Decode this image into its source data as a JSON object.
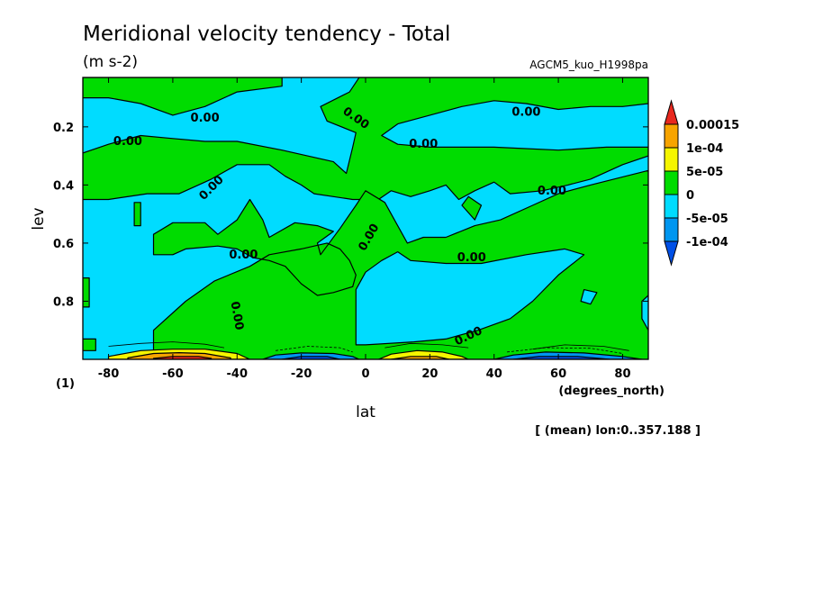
{
  "chart_data": {
    "type": "heatmap",
    "title": "Meridional velocity tendency - Total",
    "units": "(m s-2)",
    "experiment": "AGCM5_kuo_H1998pa",
    "xlabel": "lat",
    "xunits": "(degrees_north)",
    "ylabel": "lev",
    "ylabel_unit": "(1)",
    "averaging_note": "[ (mean) lon:0..357.188 ]",
    "xlim": [
      -88,
      88
    ],
    "ylim": [
      1.0,
      0.03
    ],
    "x_ticks": [
      {
        "value": -80,
        "label": "-80"
      },
      {
        "value": -60,
        "label": "-60"
      },
      {
        "value": -40,
        "label": "-40"
      },
      {
        "value": -20,
        "label": "-20"
      },
      {
        "value": 0,
        "label": "0"
      },
      {
        "value": 20,
        "label": "20"
      },
      {
        "value": 40,
        "label": "40"
      },
      {
        "value": 60,
        "label": "60"
      },
      {
        "value": 80,
        "label": "80"
      }
    ],
    "y_ticks": [
      {
        "value": 0.2,
        "label": "0.2"
      },
      {
        "value": 0.4,
        "label": "0.4"
      },
      {
        "value": 0.6,
        "label": "0.6"
      },
      {
        "value": 0.8,
        "label": "0.8"
      }
    ],
    "colorbar": {
      "levels": [
        "0.00015",
        "1e-04",
        "5e-05",
        "0",
        "-5e-05",
        "-1e-04"
      ],
      "colors": [
        "#e8281e",
        "#f7a400",
        "#f5f500",
        "#00dc00",
        "#00dcff",
        "#0096f0",
        "#0050e6"
      ]
    },
    "contour_labels": [
      {
        "text": "0.00",
        "lat": -50,
        "lev": 0.17,
        "angle": 0
      },
      {
        "text": "0.00",
        "lat": -74,
        "lev": 0.25,
        "angle": 0
      },
      {
        "text": "0.00",
        "lat": -48,
        "lev": 0.41,
        "angle": -45
      },
      {
        "text": "0.00",
        "lat": -38,
        "lev": 0.64,
        "angle": 0
      },
      {
        "text": "0.00",
        "lat": -40,
        "lev": 0.85,
        "angle": 80
      },
      {
        "text": "0.00",
        "lat": -3,
        "lev": 0.17,
        "angle": 35
      },
      {
        "text": "0.00",
        "lat": 18,
        "lev": 0.26,
        "angle": 0
      },
      {
        "text": "0.00",
        "lat": 50,
        "lev": 0.15,
        "angle": 0
      },
      {
        "text": "0.00",
        "lat": 58,
        "lev": 0.42,
        "angle": 0
      },
      {
        "text": "0.00",
        "lat": 1,
        "lev": 0.58,
        "angle": -60
      },
      {
        "text": "0.00",
        "lat": 33,
        "lev": 0.65,
        "angle": 0
      },
      {
        "text": "0.00",
        "lat": 32,
        "lev": 0.92,
        "angle": -25
      }
    ],
    "regions": [
      {
        "color": "#00dc00",
        "points": [
          [
            -88,
            0.03
          ],
          [
            -26,
            0.03
          ],
          [
            -26,
            0.06
          ],
          [
            -40,
            0.08
          ],
          [
            -50,
            0.13
          ],
          [
            -60,
            0.16
          ],
          [
            -70,
            0.12
          ],
          [
            -80,
            0.1
          ],
          [
            -88,
            0.1
          ]
        ]
      },
      {
        "color": "#00dc00",
        "points": [
          [
            -88,
            0.29
          ],
          [
            -80,
            0.26
          ],
          [
            -70,
            0.23
          ],
          [
            -60,
            0.24
          ],
          [
            -50,
            0.25
          ],
          [
            -40,
            0.25
          ],
          [
            -26,
            0.28
          ],
          [
            -10,
            0.32
          ],
          [
            -6,
            0.36
          ],
          [
            -4,
            0.27
          ],
          [
            -3,
            0.22
          ],
          [
            -12,
            0.18
          ],
          [
            -14,
            0.13
          ],
          [
            -5,
            0.08
          ],
          [
            -2,
            0.03
          ],
          [
            88,
            0.03
          ],
          [
            88,
            0.12
          ],
          [
            80,
            0.13
          ],
          [
            70,
            0.13
          ],
          [
            60,
            0.14
          ],
          [
            50,
            0.12
          ],
          [
            40,
            0.11
          ],
          [
            30,
            0.13
          ],
          [
            20,
            0.16
          ],
          [
            10,
            0.19
          ],
          [
            5,
            0.23
          ],
          [
            10,
            0.26
          ],
          [
            20,
            0.27
          ],
          [
            40,
            0.27
          ],
          [
            60,
            0.28
          ],
          [
            75,
            0.27
          ],
          [
            88,
            0.27
          ],
          [
            88,
            0.3
          ],
          [
            80,
            0.33
          ],
          [
            70,
            0.38
          ],
          [
            63,
            0.4
          ],
          [
            55,
            0.42
          ],
          [
            45,
            0.43
          ],
          [
            40,
            0.39
          ],
          [
            34,
            0.42
          ],
          [
            29,
            0.45
          ],
          [
            25,
            0.4
          ],
          [
            20,
            0.42
          ],
          [
            14,
            0.44
          ],
          [
            8,
            0.42
          ],
          [
            4,
            0.45
          ],
          [
            -4,
            0.45
          ],
          [
            -10,
            0.44
          ],
          [
            -16,
            0.43
          ],
          [
            -20,
            0.4
          ],
          [
            -25,
            0.37
          ],
          [
            -30,
            0.33
          ],
          [
            -40,
            0.33
          ],
          [
            -48,
            0.38
          ],
          [
            -58,
            0.43
          ],
          [
            -68,
            0.43
          ],
          [
            -80,
            0.45
          ],
          [
            -88,
            0.45
          ]
        ]
      },
      {
        "color": "#00dc00",
        "points": [
          [
            -66,
            0.64
          ],
          [
            -66,
            0.57
          ],
          [
            -60,
            0.53
          ],
          [
            -50,
            0.53
          ],
          [
            -46,
            0.57
          ],
          [
            -40,
            0.52
          ],
          [
            -36,
            0.45
          ],
          [
            -32,
            0.52
          ],
          [
            -30,
            0.58
          ],
          [
            -22,
            0.53
          ],
          [
            -15,
            0.54
          ],
          [
            -10,
            0.56
          ],
          [
            -15,
            0.6
          ],
          [
            -14,
            0.64
          ],
          [
            -8,
            0.55
          ],
          [
            -3,
            0.47
          ],
          [
            0,
            0.42
          ],
          [
            6,
            0.46
          ],
          [
            8,
            0.5
          ],
          [
            13,
            0.6
          ],
          [
            18,
            0.58
          ],
          [
            25,
            0.58
          ],
          [
            34,
            0.54
          ],
          [
            42,
            0.52
          ],
          [
            52,
            0.47
          ],
          [
            60,
            0.43
          ],
          [
            70,
            0.4
          ],
          [
            88,
            0.35
          ],
          [
            88,
            1.0
          ],
          [
            -66,
            1.0
          ],
          [
            -66,
            0.9
          ],
          [
            -56,
            0.8
          ],
          [
            -47,
            0.73
          ],
          [
            -36,
            0.68
          ],
          [
            -30,
            0.64
          ],
          [
            -20,
            0.62
          ],
          [
            -12,
            0.6
          ],
          [
            -8,
            0.62
          ],
          [
            -5,
            0.66
          ],
          [
            -3,
            0.71
          ],
          [
            -4,
            0.75
          ],
          [
            -10,
            0.77
          ],
          [
            -15,
            0.78
          ],
          [
            -20,
            0.74
          ],
          [
            -25,
            0.68
          ],
          [
            -30,
            0.66
          ],
          [
            -35,
            0.65
          ],
          [
            -40,
            0.62
          ],
          [
            -46,
            0.61
          ],
          [
            -56,
            0.62
          ],
          [
            -60,
            0.64
          ]
        ]
      },
      {
        "color": "#00dcff",
        "points": [
          [
            -3,
            0.76
          ],
          [
            0,
            0.7
          ],
          [
            5,
            0.66
          ],
          [
            10,
            0.63
          ],
          [
            14,
            0.66
          ],
          [
            25,
            0.67
          ],
          [
            36,
            0.67
          ],
          [
            50,
            0.64
          ],
          [
            62,
            0.62
          ],
          [
            68,
            0.64
          ],
          [
            60,
            0.71
          ],
          [
            52,
            0.8
          ],
          [
            45,
            0.86
          ],
          [
            35,
            0.9
          ],
          [
            25,
            0.93
          ],
          [
            15,
            0.94
          ],
          [
            0,
            0.95
          ],
          [
            -3,
            0.95
          ]
        ]
      },
      {
        "color": "#00dc00",
        "points": [
          [
            -88,
            0.93
          ],
          [
            -84,
            0.93
          ],
          [
            -84,
            0.97
          ],
          [
            -88,
            0.97
          ]
        ]
      },
      {
        "color": "#00dc00",
        "points": [
          [
            -88,
            0.72
          ],
          [
            -86,
            0.72
          ],
          [
            -86,
            0.82
          ],
          [
            -88,
            0.82
          ]
        ]
      },
      {
        "color": "#00dc00",
        "points": [
          [
            -72,
            0.46
          ],
          [
            -70,
            0.46
          ],
          [
            -70,
            0.54
          ],
          [
            -72,
            0.54
          ]
        ]
      },
      {
        "color": "#00dc00",
        "points": [
          [
            32,
            0.44
          ],
          [
            36,
            0.47
          ],
          [
            34,
            0.52
          ],
          [
            30,
            0.47
          ]
        ]
      },
      {
        "color": "#00dcff",
        "points": [
          [
            68,
            0.76
          ],
          [
            72,
            0.77
          ],
          [
            70,
            0.81
          ],
          [
            67,
            0.8
          ]
        ]
      },
      {
        "color": "#00dcff",
        "points": [
          [
            86,
            0.8
          ],
          [
            88,
            0.78
          ],
          [
            88,
            0.9
          ],
          [
            86,
            0.86
          ]
        ]
      },
      {
        "color": "#f5f500",
        "points": [
          [
            -80,
            0.99
          ],
          [
            -70,
            0.97
          ],
          [
            -60,
            0.965
          ],
          [
            -50,
            0.965
          ],
          [
            -40,
            0.98
          ],
          [
            -36,
            1.0
          ],
          [
            -80,
            1.0
          ]
        ]
      },
      {
        "color": "#f7a400",
        "points": [
          [
            -74,
            0.995
          ],
          [
            -66,
            0.98
          ],
          [
            -58,
            0.977
          ],
          [
            -50,
            0.98
          ],
          [
            -42,
            0.995
          ],
          [
            -42,
            1.0
          ],
          [
            -74,
            1.0
          ]
        ]
      },
      {
        "color": "#e8281e",
        "points": [
          [
            -66,
            0.997
          ],
          [
            -60,
            0.99
          ],
          [
            -52,
            0.99
          ],
          [
            -48,
            0.997
          ],
          [
            -48,
            1.0
          ],
          [
            -66,
            1.0
          ]
        ]
      },
      {
        "color": "#0096f0",
        "points": [
          [
            -32,
            1.0
          ],
          [
            -28,
            0.985
          ],
          [
            -20,
            0.978
          ],
          [
            -10,
            0.98
          ],
          [
            -4,
            0.99
          ],
          [
            -2,
            1.0
          ]
        ]
      },
      {
        "color": "#0050e6",
        "points": [
          [
            -26,
            1.0
          ],
          [
            -20,
            0.99
          ],
          [
            -12,
            0.99
          ],
          [
            -8,
            1.0
          ]
        ]
      },
      {
        "color": "#f5f500",
        "points": [
          [
            4,
            1.0
          ],
          [
            8,
            0.982
          ],
          [
            16,
            0.97
          ],
          [
            24,
            0.975
          ],
          [
            30,
            0.99
          ],
          [
            32,
            1.0
          ]
        ]
      },
      {
        "color": "#f7a400",
        "points": [
          [
            8,
            1.0
          ],
          [
            14,
            0.99
          ],
          [
            22,
            0.99
          ],
          [
            26,
            1.0
          ]
        ]
      },
      {
        "color": "#0096f0",
        "points": [
          [
            40,
            1.0
          ],
          [
            46,
            0.985
          ],
          [
            56,
            0.975
          ],
          [
            68,
            0.978
          ],
          [
            80,
            0.99
          ],
          [
            86,
            1.0
          ]
        ]
      },
      {
        "color": "#0050e6",
        "points": [
          [
            46,
            1.0
          ],
          [
            54,
            0.99
          ],
          [
            66,
            0.99
          ],
          [
            76,
            1.0
          ]
        ]
      }
    ],
    "contour_lines": [
      {
        "style": "solid",
        "points": [
          [
            -80,
            0.955
          ],
          [
            -70,
            0.945
          ],
          [
            -60,
            0.94
          ],
          [
            -50,
            0.948
          ],
          [
            -44,
            0.96
          ]
        ]
      },
      {
        "style": "solid",
        "points": [
          [
            6,
            0.96
          ],
          [
            14,
            0.945
          ],
          [
            24,
            0.95
          ],
          [
            32,
            0.96
          ]
        ]
      },
      {
        "style": "solid",
        "points": [
          [
            52,
            0.965
          ],
          [
            62,
            0.95
          ],
          [
            74,
            0.955
          ],
          [
            82,
            0.97
          ]
        ]
      },
      {
        "style": "dashed",
        "points": [
          [
            -28,
            0.97
          ],
          [
            -18,
            0.955
          ],
          [
            -8,
            0.96
          ],
          [
            -4,
            0.975
          ]
        ]
      },
      {
        "style": "dashed",
        "points": [
          [
            44,
            0.975
          ],
          [
            56,
            0.96
          ],
          [
            70,
            0.962
          ],
          [
            80,
            0.98
          ]
        ]
      }
    ]
  }
}
